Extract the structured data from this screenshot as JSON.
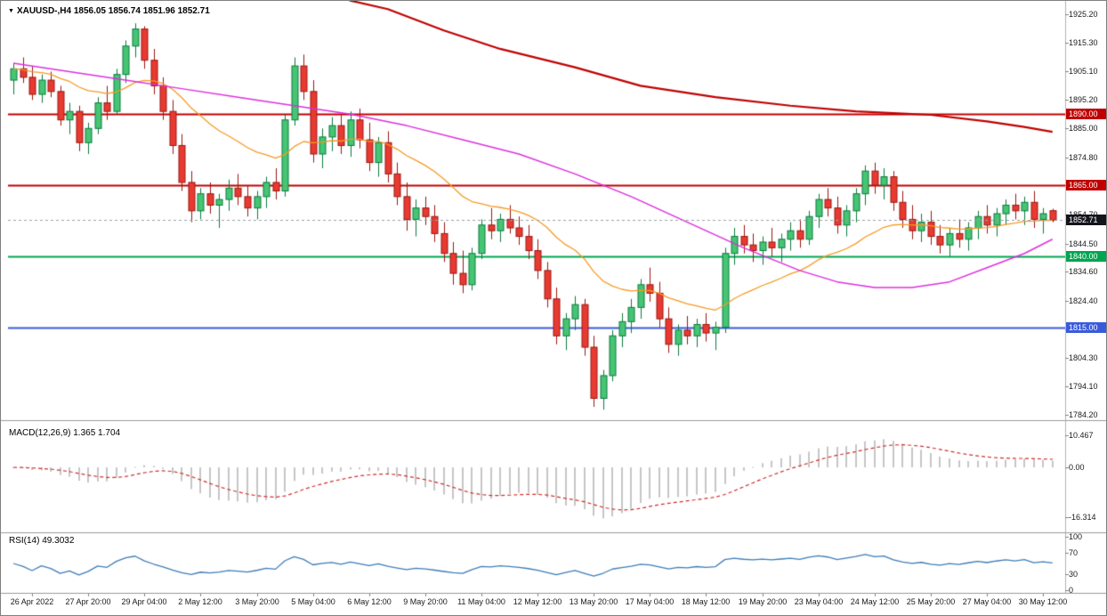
{
  "header": {
    "symbol": "XAUUSD-,H4",
    "ohlc": "1856.05 1856.74 1851.96 1852.71",
    "marker_icon": "▼"
  },
  "price_axis": {
    "labels": [
      "1925.20",
      "1915.30",
      "1905.10",
      "1895.20",
      "1885.00",
      "1874.80",
      "1864.90",
      "1854.70",
      "1844.50",
      "1834.60",
      "1824.40",
      "1814.20",
      "1804.30",
      "1794.10",
      "1784.20"
    ]
  },
  "hlines": [
    {
      "label": "1890.00",
      "value": 1890.0,
      "color": "#c00000",
      "badge_bg": "#c00000",
      "style": "solid"
    },
    {
      "label": "1865.00",
      "value": 1865.0,
      "color": "#c00000",
      "badge_bg": "#c00000",
      "style": "solid"
    },
    {
      "label": "1852.71",
      "value": 1852.71,
      "color": "#9aa0a6",
      "badge_bg": "#14141e",
      "style": "dashed"
    },
    {
      "label": "1840.00",
      "value": 1840.0,
      "color": "#00a550",
      "badge_bg": "#00a550",
      "style": "solid"
    },
    {
      "label": "1815.00",
      "value": 1815.0,
      "color": "#3a5bd9",
      "badge_bg": "#3a5bd9",
      "style": "solid"
    }
  ],
  "time_axis": {
    "labels": [
      "26 Apr 2022",
      "27 Apr 20:00",
      "29 Apr 04:00",
      "2 May 12:00",
      "3 May 20:00",
      "5 May 04:00",
      "6 May 12:00",
      "9 May 20:00",
      "11 May 04:00",
      "12 May 12:00",
      "13 May 20:00",
      "17 May 04:00",
      "18 May 12:00",
      "19 May 20:00",
      "23 May 04:00",
      "24 May 12:00",
      "25 May 20:00",
      "27 May 04:00",
      "30 May 12:00"
    ],
    "indices": [
      2,
      8,
      14,
      20,
      26,
      32,
      38,
      44,
      50,
      56,
      62,
      68,
      74,
      80,
      86,
      92,
      98,
      104,
      110
    ]
  },
  "chart_data": {
    "type": "candlestick",
    "title": "XAUUSD- H4",
    "ylim": [
      1784.2,
      1925.2
    ],
    "candle_colors": {
      "up_fill": "#46c573",
      "up_border": "#0b7a3e",
      "down_fill": "#e83a30",
      "down_border": "#9a1712"
    },
    "candles": [
      [
        1902,
        1908,
        1897,
        1906
      ],
      [
        1906,
        1910,
        1901,
        1903
      ],
      [
        1903,
        1907,
        1895,
        1897
      ],
      [
        1897,
        1904,
        1894,
        1902
      ],
      [
        1902,
        1905,
        1896,
        1898
      ],
      [
        1898,
        1900,
        1886,
        1888
      ],
      [
        1888,
        1894,
        1883,
        1891
      ],
      [
        1891,
        1893,
        1877,
        1880
      ],
      [
        1880,
        1887,
        1876,
        1885
      ],
      [
        1885,
        1896,
        1883,
        1894
      ],
      [
        1894,
        1900,
        1888,
        1891
      ],
      [
        1891,
        1906,
        1890,
        1904
      ],
      [
        1904,
        1916,
        1901,
        1914
      ],
      [
        1914,
        1922,
        1910,
        1920
      ],
      [
        1920,
        1921,
        1906,
        1909
      ],
      [
        1909,
        1913,
        1897,
        1900
      ],
      [
        1900,
        1903,
        1888,
        1891
      ],
      [
        1891,
        1895,
        1876,
        1879
      ],
      [
        1879,
        1883,
        1863,
        1866
      ],
      [
        1866,
        1870,
        1852,
        1856
      ],
      [
        1856,
        1864,
        1853,
        1862
      ],
      [
        1862,
        1866,
        1855,
        1858
      ],
      [
        1858,
        1862,
        1850,
        1860
      ],
      [
        1860,
        1867,
        1856,
        1864
      ],
      [
        1864,
        1869,
        1858,
        1861
      ],
      [
        1861,
        1865,
        1854,
        1857
      ],
      [
        1857,
        1863,
        1853,
        1861
      ],
      [
        1861,
        1868,
        1857,
        1866
      ],
      [
        1866,
        1871,
        1860,
        1863
      ],
      [
        1863,
        1890,
        1861,
        1888
      ],
      [
        1888,
        1910,
        1886,
        1907
      ],
      [
        1907,
        1911,
        1895,
        1898
      ],
      [
        1898,
        1902,
        1873,
        1876
      ],
      [
        1876,
        1885,
        1871,
        1882
      ],
      [
        1882,
        1889,
        1877,
        1886
      ],
      [
        1886,
        1890,
        1876,
        1879
      ],
      [
        1879,
        1891,
        1875,
        1888
      ],
      [
        1888,
        1892,
        1878,
        1881
      ],
      [
        1881,
        1887,
        1870,
        1873
      ],
      [
        1873,
        1882,
        1868,
        1880
      ],
      [
        1880,
        1884,
        1866,
        1869
      ],
      [
        1869,
        1873,
        1858,
        1861
      ],
      [
        1861,
        1866,
        1849,
        1853
      ],
      [
        1853,
        1860,
        1847,
        1857
      ],
      [
        1857,
        1861,
        1851,
        1854
      ],
      [
        1854,
        1858,
        1845,
        1848
      ],
      [
        1848,
        1852,
        1838,
        1841
      ],
      [
        1841,
        1845,
        1830,
        1834
      ],
      [
        1834,
        1842,
        1827,
        1830
      ],
      [
        1830,
        1843,
        1828,
        1841
      ],
      [
        1841,
        1853,
        1839,
        1851
      ],
      [
        1851,
        1857,
        1846,
        1849
      ],
      [
        1849,
        1855,
        1845,
        1853
      ],
      [
        1853,
        1858,
        1848,
        1850
      ],
      [
        1850,
        1854,
        1844,
        1847
      ],
      [
        1847,
        1851,
        1839,
        1842
      ],
      [
        1842,
        1846,
        1832,
        1835
      ],
      [
        1835,
        1838,
        1822,
        1825
      ],
      [
        1825,
        1829,
        1809,
        1812
      ],
      [
        1812,
        1820,
        1807,
        1818
      ],
      [
        1818,
        1826,
        1814,
        1823
      ],
      [
        1823,
        1825,
        1805,
        1808
      ],
      [
        1808,
        1812,
        1787,
        1790
      ],
      [
        1790,
        1800,
        1786,
        1798
      ],
      [
        1798,
        1814,
        1796,
        1812
      ],
      [
        1812,
        1820,
        1808,
        1817
      ],
      [
        1817,
        1825,
        1813,
        1822
      ],
      [
        1822,
        1832,
        1818,
        1830
      ],
      [
        1830,
        1836,
        1824,
        1827
      ],
      [
        1827,
        1831,
        1815,
        1818
      ],
      [
        1818,
        1822,
        1806,
        1809
      ],
      [
        1809,
        1816,
        1805,
        1814
      ],
      [
        1814,
        1819,
        1809,
        1812
      ],
      [
        1812,
        1818,
        1808,
        1816
      ],
      [
        1816,
        1820,
        1810,
        1813
      ],
      [
        1813,
        1817,
        1807,
        1815
      ],
      [
        1815,
        1843,
        1813,
        1841
      ],
      [
        1841,
        1850,
        1837,
        1847
      ],
      [
        1847,
        1851,
        1841,
        1844
      ],
      [
        1844,
        1848,
        1838,
        1842
      ],
      [
        1842,
        1847,
        1837,
        1845
      ],
      [
        1845,
        1850,
        1840,
        1843
      ],
      [
        1843,
        1848,
        1838,
        1846
      ],
      [
        1846,
        1852,
        1842,
        1849
      ],
      [
        1849,
        1853,
        1843,
        1846
      ],
      [
        1846,
        1856,
        1844,
        1854
      ],
      [
        1854,
        1862,
        1850,
        1860
      ],
      [
        1860,
        1864,
        1854,
        1857
      ],
      [
        1857,
        1861,
        1848,
        1851
      ],
      [
        1851,
        1858,
        1847,
        1856
      ],
      [
        1856,
        1864,
        1852,
        1862
      ],
      [
        1862,
        1872,
        1858,
        1870
      ],
      [
        1870,
        1873,
        1862,
        1865
      ],
      [
        1865,
        1871,
        1860,
        1868
      ],
      [
        1868,
        1870,
        1856,
        1859
      ],
      [
        1859,
        1863,
        1850,
        1853
      ],
      [
        1853,
        1858,
        1846,
        1849
      ],
      [
        1849,
        1855,
        1845,
        1852
      ],
      [
        1852,
        1856,
        1844,
        1847
      ],
      [
        1847,
        1851,
        1841,
        1844
      ],
      [
        1844,
        1850,
        1840,
        1848
      ],
      [
        1848,
        1853,
        1843,
        1846
      ],
      [
        1846,
        1852,
        1842,
        1850
      ],
      [
        1850,
        1856,
        1846,
        1854
      ],
      [
        1854,
        1858,
        1848,
        1851
      ],
      [
        1851,
        1857,
        1847,
        1855
      ],
      [
        1855,
        1860,
        1851,
        1858
      ],
      [
        1858,
        1862,
        1853,
        1856
      ],
      [
        1856,
        1861,
        1851,
        1859
      ],
      [
        1859,
        1863,
        1850,
        1853
      ],
      [
        1853,
        1857,
        1848,
        1855
      ],
      [
        1856.05,
        1856.74,
        1851.96,
        1852.71
      ]
    ],
    "overlays": {
      "ma_fast": {
        "name": "fast-ma-orange",
        "color": "#f59a23",
        "period": 21,
        "width": 1.3
      },
      "ma_mid": {
        "name": "mid-ma-magenta",
        "color": "#dd2fdd",
        "width": 1.5,
        "points": [
          [
            0,
            1908
          ],
          [
            6,
            1905
          ],
          [
            12,
            1902
          ],
          [
            18,
            1899
          ],
          [
            24,
            1896
          ],
          [
            30,
            1893
          ],
          [
            36,
            1890
          ],
          [
            42,
            1886
          ],
          [
            48,
            1881
          ],
          [
            54,
            1876
          ],
          [
            60,
            1869
          ],
          [
            66,
            1861
          ],
          [
            72,
            1852
          ],
          [
            78,
            1843
          ],
          [
            84,
            1835
          ],
          [
            88,
            1831
          ],
          [
            92,
            1829
          ],
          [
            96,
            1829
          ],
          [
            100,
            1831
          ],
          [
            104,
            1836
          ],
          [
            108,
            1841
          ],
          [
            111,
            1846
          ]
        ]
      },
      "ma_long": {
        "name": "long-ma-red",
        "color": "#c00000",
        "width": 2.2,
        "points": [
          [
            34,
            1933
          ],
          [
            36,
            1930
          ],
          [
            40,
            1927
          ],
          [
            46,
            1919.5
          ],
          [
            52,
            1913
          ],
          [
            60,
            1906.5
          ],
          [
            67,
            1900
          ],
          [
            75,
            1896
          ],
          [
            83,
            1893
          ],
          [
            90,
            1891
          ],
          [
            98,
            1889.8
          ],
          [
            104,
            1887.5
          ],
          [
            108,
            1885.5
          ],
          [
            111,
            1883.8
          ]
        ]
      }
    },
    "macd": {
      "label": "MACD(12,26,9)",
      "values": "1.365 1.704",
      "params": [
        12,
        26,
        9
      ],
      "axis_labels": [
        "10.467",
        "0.00",
        "-16.314"
      ],
      "axis_values": [
        10.467,
        0,
        -16.314
      ],
      "hist_color": "#c6c6c6",
      "signal_color": "#cf2e2e"
    },
    "rsi": {
      "label": "RSI(14)",
      "value": "49.3032",
      "period": 14,
      "axis_labels": [
        "100",
        "70",
        "30",
        "0"
      ],
      "axis_values": [
        100,
        70,
        30,
        0
      ],
      "color": "#3e7cb8"
    }
  }
}
